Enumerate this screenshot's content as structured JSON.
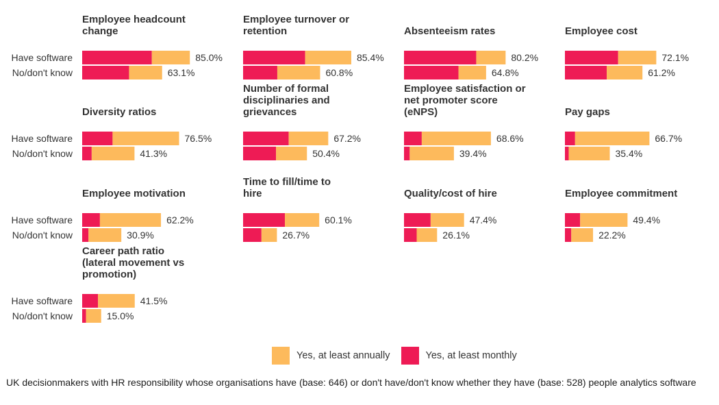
{
  "chart_data": {
    "type": "bar",
    "orientation": "horizontal-stacked",
    "row_labels": [
      "Have software",
      "No/don't know"
    ],
    "legend": [
      {
        "key": "annually",
        "label": "Yes, at least annually",
        "color": "#FDBA5C"
      },
      {
        "key": "monthly",
        "label": "Yes, at least monthly",
        "color": "#EE1B55"
      }
    ],
    "xlim": [
      0,
      100
    ],
    "panels": [
      {
        "title": [
          "Employee headcount",
          "change"
        ],
        "have": {
          "total": 85.0,
          "monthly": 55.0,
          "label": "85.0%"
        },
        "no": {
          "total": 63.1,
          "monthly": 37.0,
          "label": "63.1%"
        }
      },
      {
        "title": [
          "Employee turnover or",
          "retention"
        ],
        "have": {
          "total": 85.4,
          "monthly": 49.0,
          "label": "85.4%"
        },
        "no": {
          "total": 60.8,
          "monthly": 27.0,
          "label": "60.8%"
        }
      },
      {
        "title": [
          "Absenteeism rates"
        ],
        "have": {
          "total": 80.2,
          "monthly": 57.0,
          "label": "80.2%"
        },
        "no": {
          "total": 64.8,
          "monthly": 43.0,
          "label": "64.8%"
        }
      },
      {
        "title": [
          "Employee cost"
        ],
        "have": {
          "total": 72.1,
          "monthly": 42.0,
          "label": "72.1%"
        },
        "no": {
          "total": 61.2,
          "monthly": 33.0,
          "label": "61.2%"
        }
      },
      {
        "title": [
          "Diversity ratios"
        ],
        "have": {
          "total": 76.5,
          "monthly": 24.0,
          "label": "76.5%"
        },
        "no": {
          "total": 41.3,
          "monthly": 7.5,
          "label": "41.3%"
        }
      },
      {
        "title": [
          "Number of formal",
          "disciplinaries and",
          "grievances"
        ],
        "have": {
          "total": 67.2,
          "monthly": 36.0,
          "label": "67.2%"
        },
        "no": {
          "total": 50.4,
          "monthly": 26.0,
          "label": "50.4%"
        }
      },
      {
        "title": [
          "Employee satisfaction or",
          "net promoter score",
          "(eNPS)"
        ],
        "have": {
          "total": 68.6,
          "monthly": 14.0,
          "label": "68.6%"
        },
        "no": {
          "total": 39.4,
          "monthly": 4.5,
          "label": "39.4%"
        }
      },
      {
        "title": [
          "Pay gaps"
        ],
        "have": {
          "total": 66.7,
          "monthly": 8.0,
          "label": "66.7%"
        },
        "no": {
          "total": 35.4,
          "monthly": 3.0,
          "label": "35.4%"
        }
      },
      {
        "title": [
          "Employee motivation"
        ],
        "have": {
          "total": 62.2,
          "monthly": 14.0,
          "label": "62.2%"
        },
        "no": {
          "total": 30.9,
          "monthly": 5.0,
          "label": "30.9%"
        }
      },
      {
        "title": [
          "Time to fill/time to",
          "hire"
        ],
        "have": {
          "total": 60.1,
          "monthly": 33.0,
          "label": "60.1%"
        },
        "no": {
          "total": 26.7,
          "monthly": 14.5,
          "label": "26.7%"
        }
      },
      {
        "title": [
          "Quality/cost of hire"
        ],
        "have": {
          "total": 47.4,
          "monthly": 21.0,
          "label": "47.4%"
        },
        "no": {
          "total": 26.1,
          "monthly": 10.0,
          "label": "26.1%"
        }
      },
      {
        "title": [
          "Employee commitment"
        ],
        "have": {
          "total": 49.4,
          "monthly": 12.0,
          "label": "49.4%"
        },
        "no": {
          "total": 22.2,
          "monthly": 5.0,
          "label": "22.2%"
        }
      },
      {
        "title": [
          "Career path ratio",
          "(lateral movement vs",
          "promotion)"
        ],
        "have": {
          "total": 41.5,
          "monthly": 12.5,
          "label": "41.5%"
        },
        "no": {
          "total": 15.0,
          "monthly": 3.0,
          "label": "15.0%"
        }
      }
    ]
  },
  "caption": "UK decisionmakers with HR responsibility whose organisations have (base: 646) or don't have/don't know whether they have (base: 528) people analytics software"
}
